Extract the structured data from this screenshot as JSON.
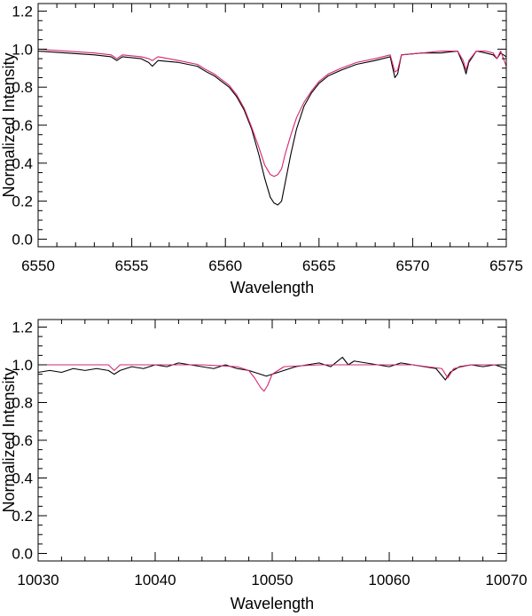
{
  "colors": {
    "observed": "#000000",
    "model": "#d6256f",
    "axes": "#000000"
  },
  "chart_data": [
    {
      "type": "line",
      "xlabel": "Wavelength",
      "ylabel": "Normalized Intensity",
      "xlim": [
        6550,
        6575
      ],
      "ylim": [
        -0.04,
        1.24
      ],
      "x_ticks": [
        6550,
        6555,
        6560,
        6565,
        6570,
        6575
      ],
      "x_tick_labels": [
        "6550",
        "6555",
        "6560",
        "6565",
        "6570",
        "6575"
      ],
      "y_ticks": [
        0.0,
        0.2,
        0.4,
        0.6,
        0.8,
        1.0,
        1.2
      ],
      "y_tick_labels": [
        "0.0",
        "0.2",
        "0.4",
        "0.6",
        "0.8",
        "1.0",
        "1.2"
      ],
      "x_minor_step": 1,
      "y_minor_step": 0.05,
      "series": [
        {
          "color": "#000000",
          "x": [
            6550.0,
            6551.5,
            6553.0,
            6553.9,
            6554.2,
            6554.5,
            6555.5,
            6555.9,
            6556.1,
            6556.4,
            6557.5,
            6558.5,
            6559.0,
            6559.4,
            6559.8,
            6560.2,
            6560.6,
            6561.0,
            6561.4,
            6561.8,
            6562.1,
            6562.4,
            6562.6,
            6562.8,
            6563.0,
            6563.2,
            6563.5,
            6563.8,
            6564.2,
            6564.6,
            6565.0,
            6565.5,
            6566.2,
            6567.0,
            6568.0,
            6568.8,
            6569.05,
            6569.2,
            6569.4,
            6570.5,
            6571.5,
            6572.4,
            6572.7,
            6572.85,
            6573.0,
            6573.4,
            6573.9,
            6574.3,
            6574.5,
            6574.7,
            6575.0
          ],
          "y": [
            0.99,
            0.98,
            0.97,
            0.96,
            0.94,
            0.96,
            0.95,
            0.93,
            0.91,
            0.94,
            0.93,
            0.91,
            0.88,
            0.86,
            0.83,
            0.8,
            0.75,
            0.68,
            0.58,
            0.44,
            0.32,
            0.22,
            0.19,
            0.18,
            0.2,
            0.3,
            0.45,
            0.58,
            0.7,
            0.77,
            0.82,
            0.86,
            0.89,
            0.92,
            0.94,
            0.96,
            0.85,
            0.87,
            0.97,
            0.98,
            0.98,
            0.99,
            0.92,
            0.87,
            0.93,
            0.99,
            0.98,
            0.97,
            0.95,
            0.98,
            0.96
          ]
        },
        {
          "color": "#d6256f",
          "x": [
            6550.0,
            6551.5,
            6553.0,
            6553.9,
            6554.2,
            6554.5,
            6555.5,
            6555.9,
            6556.1,
            6556.4,
            6557.5,
            6558.5,
            6559.0,
            6559.4,
            6559.8,
            6560.2,
            6560.6,
            6561.0,
            6561.4,
            6561.8,
            6562.1,
            6562.4,
            6562.6,
            6562.8,
            6563.0,
            6563.2,
            6563.5,
            6563.8,
            6564.2,
            6564.6,
            6565.0,
            6565.5,
            6566.2,
            6567.0,
            6568.0,
            6568.8,
            6569.05,
            6569.2,
            6569.4,
            6570.5,
            6571.5,
            6572.4,
            6572.7,
            6572.85,
            6573.0,
            6573.4,
            6573.9,
            6574.3,
            6574.5,
            6574.7,
            6575.0
          ],
          "y": [
            1.0,
            0.99,
            0.98,
            0.97,
            0.95,
            0.97,
            0.96,
            0.95,
            0.94,
            0.96,
            0.94,
            0.92,
            0.89,
            0.87,
            0.84,
            0.81,
            0.76,
            0.69,
            0.59,
            0.48,
            0.39,
            0.34,
            0.33,
            0.34,
            0.37,
            0.45,
            0.55,
            0.64,
            0.72,
            0.78,
            0.83,
            0.87,
            0.9,
            0.93,
            0.95,
            0.97,
            0.88,
            0.89,
            0.97,
            0.98,
            0.99,
            0.99,
            0.94,
            0.89,
            0.94,
            0.99,
            0.99,
            0.98,
            0.95,
            0.99,
            0.91
          ]
        }
      ]
    },
    {
      "type": "line",
      "xlabel": "Wavelength",
      "ylabel": "Normalized Intensity",
      "xlim": [
        10030,
        10070
      ],
      "ylim": [
        -0.04,
        1.24
      ],
      "x_ticks": [
        10030,
        10040,
        10050,
        10060,
        10070
      ],
      "x_tick_labels": [
        "10030",
        "10040",
        "10050",
        "10060",
        "10070"
      ],
      "y_ticks": [
        0.0,
        0.2,
        0.4,
        0.6,
        0.8,
        1.0,
        1.2
      ],
      "y_tick_labels": [
        "0.0",
        "0.2",
        "0.4",
        "0.6",
        "0.8",
        "1.0",
        "1.2"
      ],
      "x_minor_step": 2,
      "y_minor_step": 0.05,
      "series": [
        {
          "color": "#000000",
          "x": [
            10030,
            10031,
            10032,
            10033,
            10034,
            10035,
            10036,
            10036.5,
            10037,
            10038,
            10039,
            10040,
            10041,
            10042,
            10043,
            10044,
            10045,
            10046,
            10047,
            10048,
            10049,
            10049.5,
            10050,
            10051,
            10052,
            10053,
            10054,
            10055,
            10056,
            10056.5,
            10057,
            10058,
            10059,
            10060,
            10061,
            10062,
            10063,
            10064,
            10064.8,
            10065.2,
            10066,
            10067,
            10068,
            10069,
            10070
          ],
          "y": [
            0.96,
            0.97,
            0.96,
            0.98,
            0.97,
            0.98,
            0.97,
            0.95,
            0.97,
            0.99,
            0.98,
            1.0,
            0.99,
            1.01,
            1.0,
            0.99,
            0.98,
            1.0,
            0.98,
            0.97,
            0.95,
            0.94,
            0.95,
            0.97,
            0.99,
            1.0,
            1.01,
            0.99,
            1.04,
            1.0,
            1.02,
            1.01,
            1.0,
            0.99,
            1.01,
            1.0,
            0.99,
            0.98,
            0.92,
            0.96,
            0.99,
            1.0,
            0.99,
            1.0,
            0.98
          ]
        },
        {
          "color": "#d6256f",
          "x": [
            10030,
            10032,
            10034,
            10036,
            10036.5,
            10037,
            10040,
            10044,
            10047,
            10048,
            10048.5,
            10049,
            10049.3,
            10049.6,
            10050,
            10051,
            10054,
            10058,
            10062,
            10064.5,
            10065,
            10065.5,
            10067,
            10070
          ],
          "y": [
            1.0,
            1.0,
            1.0,
            1.0,
            0.97,
            1.0,
            1.0,
            1.0,
            0.99,
            0.97,
            0.93,
            0.88,
            0.86,
            0.89,
            0.95,
            0.99,
            1.0,
            1.0,
            1.0,
            0.98,
            0.93,
            0.98,
            1.0,
            1.0
          ]
        }
      ]
    }
  ]
}
